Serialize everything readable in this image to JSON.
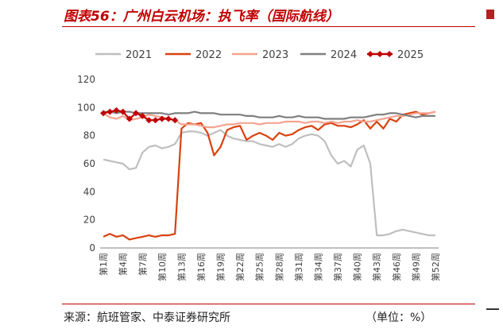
{
  "header": {
    "title": "图表56：广州白云机场：执飞率（国际航线）"
  },
  "footer": {
    "source": "来源：航班管家、中泰证券研究所",
    "unit": "（单位：%）"
  },
  "chart_data": {
    "type": "line",
    "title": "",
    "xlabel": "",
    "ylabel": "",
    "ylim": [
      0,
      120
    ],
    "yticks": [
      0,
      20,
      40,
      60,
      80,
      100,
      120
    ],
    "grid": false,
    "legend_position": "top",
    "x": [
      "第1周",
      "第2周",
      "第3周",
      "第4周",
      "第5周",
      "第6周",
      "第7周",
      "第8周",
      "第9周",
      "第10周",
      "第11周",
      "第12周",
      "第13周",
      "第14周",
      "第15周",
      "第16周",
      "第17周",
      "第18周",
      "第19周",
      "第20周",
      "第21周",
      "第22周",
      "第23周",
      "第24周",
      "第25周",
      "第26周",
      "第27周",
      "第28周",
      "第29周",
      "第30周",
      "第31周",
      "第32周",
      "第33周",
      "第34周",
      "第35周",
      "第36周",
      "第37周",
      "第38周",
      "第39周",
      "第40周",
      "第41周",
      "第42周",
      "第43周",
      "第44周",
      "第45周",
      "第46周",
      "第47周",
      "第48周",
      "第49周",
      "第50周",
      "第51周",
      "第52周"
    ],
    "series": [
      {
        "name": "2021",
        "color": "#bfbfbf",
        "marker": false,
        "values": [
          63,
          62,
          61,
          60,
          56,
          57,
          68,
          72,
          73,
          71,
          72,
          74,
          82,
          83,
          83,
          82,
          80,
          82,
          84,
          80,
          78,
          77,
          76,
          76,
          74,
          73,
          72,
          74,
          72,
          74,
          78,
          80,
          81,
          80,
          76,
          66,
          60,
          62,
          58,
          70,
          73,
          60,
          9,
          9,
          10,
          12,
          13,
          12,
          11,
          10,
          9,
          9
        ]
      },
      {
        "name": "2022",
        "color": "#d9410e",
        "marker": false,
        "values": [
          8,
          10,
          8,
          9,
          6,
          7,
          8,
          9,
          8,
          9,
          9,
          10,
          85,
          89,
          88,
          89,
          82,
          66,
          72,
          84,
          86,
          87,
          77,
          80,
          82,
          80,
          77,
          82,
          80,
          81,
          84,
          86,
          87,
          84,
          88,
          89,
          87,
          87,
          86,
          88,
          91,
          85,
          90,
          85,
          92,
          90,
          95,
          96,
          97,
          95,
          96,
          97
        ]
      },
      {
        "name": "2023",
        "color": "#f4a490",
        "marker": false,
        "values": [
          96,
          93,
          92,
          94,
          91,
          92,
          93,
          95,
          94,
          93,
          92,
          91,
          88,
          88,
          88,
          87,
          86,
          86,
          87,
          88,
          88,
          89,
          89,
          89,
          88,
          89,
          89,
          89,
          90,
          90,
          90,
          89,
          90,
          90,
          89,
          90,
          89,
          90,
          90,
          91,
          90,
          90,
          91,
          92,
          93,
          94,
          94,
          95,
          96,
          96,
          96,
          97
        ]
      },
      {
        "name": "2024",
        "color": "#7f7f7f",
        "marker": false,
        "values": [
          97,
          97,
          96,
          97,
          97,
          96,
          96,
          96,
          96,
          96,
          95,
          96,
          96,
          96,
          97,
          96,
          96,
          96,
          95,
          95,
          95,
          95,
          94,
          94,
          93,
          93,
          93,
          94,
          93,
          93,
          94,
          93,
          93,
          93,
          92,
          92,
          92,
          92,
          93,
          93,
          93,
          94,
          95,
          95,
          96,
          96,
          95,
          94,
          93,
          94,
          94,
          94
        ]
      },
      {
        "name": "2025",
        "color": "#c00000",
        "marker": true,
        "values": [
          96,
          97,
          98,
          97,
          92,
          96,
          94,
          91,
          91,
          92,
          92,
          91,
          null,
          null,
          null,
          null,
          null,
          null,
          null,
          null,
          null,
          null,
          null,
          null,
          null,
          null,
          null,
          null,
          null,
          null,
          null,
          null,
          null,
          null,
          null,
          null,
          null,
          null,
          null,
          null,
          null,
          null,
          null,
          null,
          null,
          null,
          null,
          null,
          null,
          null,
          null,
          null
        ]
      }
    ]
  }
}
